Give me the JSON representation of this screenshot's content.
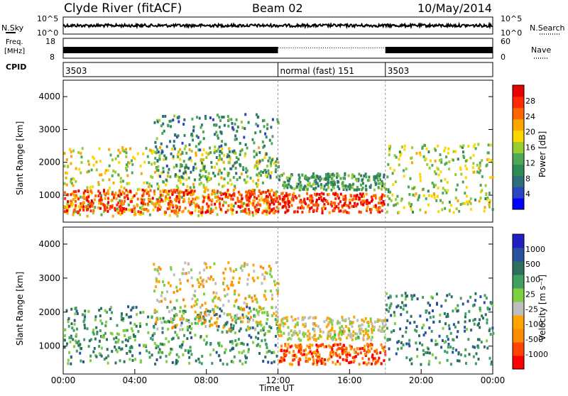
{
  "header": {
    "station": "Clyde River (fitACF)",
    "beam": "Beam 02",
    "date": "10/May/2014"
  },
  "left_labels": {
    "nsky": "N.Sky",
    "nsky_ticks": [
      "10^5",
      "10^0"
    ],
    "freq_line1": "Freq.",
    "freq_line2": "[MHz]",
    "freq_ticks": [
      "18",
      "8"
    ],
    "cpid": "CPID"
  },
  "right_labels": {
    "nsearch": "N.Search",
    "nsearch_ticks": [
      "10^5",
      "10^0"
    ],
    "nave": "Nave",
    "nave_ticks": [
      "60",
      "0"
    ]
  },
  "cpid_segments": [
    {
      "label": "3503",
      "start_h": 0,
      "end_h": 12
    },
    {
      "label": "normal (fast) 151",
      "start_h": 12,
      "end_h": 18
    },
    {
      "label": "3503",
      "start_h": 18,
      "end_h": 24
    }
  ],
  "x_axis": {
    "label": "Time UT",
    "ticks": [
      "00:00",
      "04:00",
      "08:00",
      "12:00",
      "16:00",
      "20:00",
      "00:00"
    ]
  },
  "chart_data": [
    {
      "type": "heatmap",
      "name": "power",
      "xlim": [
        0,
        24
      ],
      "ylim": [
        180,
        4500
      ],
      "xlabel": "Time UT",
      "ylabel": "Slant Range [km]",
      "yticks": [
        "1000",
        "2000",
        "3000",
        "4000"
      ],
      "colorbar_label": "Power [dB]",
      "colorbar_ticks": [
        "28",
        "24",
        "20",
        "16",
        "12",
        "8",
        "4"
      ],
      "colors": [
        "#0000ff",
        "#2a45c2",
        "#2e6f7a",
        "#2e8b57",
        "#4ea854",
        "#9acd32",
        "#ffd700",
        "#ffa500",
        "#ff6600",
        "#ff2a00",
        "#e60000"
      ],
      "regions": [
        {
          "t0": 0,
          "t1": 12,
          "r0": 400,
          "r1": 2500,
          "level": 0.55
        },
        {
          "t0": 0,
          "t1": 12,
          "r0": 500,
          "r1": 1200,
          "level": 0.85
        },
        {
          "t0": 5,
          "t1": 12,
          "r0": 1500,
          "r1": 3500,
          "level": 0.3
        },
        {
          "t0": 12,
          "t1": 18,
          "r0": 500,
          "r1": 1100,
          "level": 0.9
        },
        {
          "t0": 12,
          "t1": 18,
          "r0": 1200,
          "r1": 1700,
          "level": 0.35
        },
        {
          "t0": 18,
          "t1": 24,
          "r0": 500,
          "r1": 2600,
          "level": 0.5
        }
      ]
    },
    {
      "type": "heatmap",
      "name": "velocity",
      "xlim": [
        0,
        24
      ],
      "ylim": [
        180,
        4500
      ],
      "xlabel": "Time UT",
      "ylabel": "Slant Range [km]",
      "yticks": [
        "1000",
        "2000",
        "3000",
        "4000"
      ],
      "colorbar_label": "Velocity [m s⁻¹]",
      "colorbar_ticks": [
        "1000",
        "500",
        "100",
        "25",
        "-25",
        "-100",
        "-500",
        "-1000"
      ],
      "colors": [
        "#ff0000",
        "#ff4500",
        "#ff8c00",
        "#ffa500",
        "#bebebe",
        "#7fd040",
        "#3fa060",
        "#2e7060",
        "#2a50a0",
        "#2020c0"
      ],
      "regions": [
        {
          "t0": 0,
          "t1": 12,
          "r0": 500,
          "r1": 2200,
          "level": 0.7
        },
        {
          "t0": 5,
          "t1": 12,
          "r0": 1500,
          "r1": 3500,
          "level": 0.4
        },
        {
          "t0": 12,
          "t1": 18,
          "r0": 500,
          "r1": 1100,
          "level": 0.15
        },
        {
          "t0": 12,
          "t1": 18,
          "r0": 1200,
          "r1": 1900,
          "level": 0.45
        },
        {
          "t0": 18,
          "t1": 24,
          "r0": 500,
          "r1": 2600,
          "level": 0.75
        }
      ]
    }
  ]
}
